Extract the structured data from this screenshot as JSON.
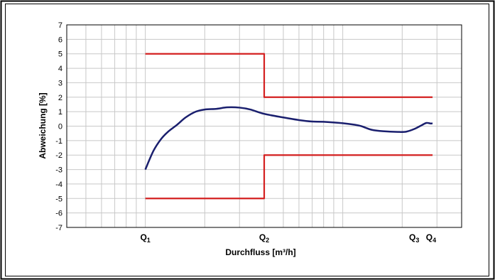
{
  "chart_data": {
    "type": "line",
    "xlabel": "Durchfluss [m³/h]",
    "ylabel": "Abweichung [%]",
    "ylim": [
      -7,
      7
    ],
    "y_ticks": [
      7,
      6,
      5,
      4,
      3,
      2,
      1,
      0,
      -1,
      -2,
      -3,
      -4,
      -5,
      -6,
      -7
    ],
    "x_scale": "log",
    "xlim": [
      0.4,
      40
    ],
    "grid": true,
    "legend": "none",
    "x_markers": [
      {
        "label": "Q",
        "sub": "1",
        "x": 1
      },
      {
        "label": "Q",
        "sub": "2",
        "x": 4
      },
      {
        "label": "Q",
        "sub": "3",
        "x": 23
      },
      {
        "label": "Q",
        "sub": "4",
        "x": 28
      }
    ],
    "colors": {
      "measured": "#1a1f6e",
      "limits": "#d42020",
      "grid": "#c8c8c8"
    },
    "series": [
      {
        "values": [
          [
            1.0,
            -3.0
          ],
          [
            1.1,
            -1.7
          ],
          [
            1.2,
            -0.9
          ],
          [
            1.3,
            -0.4
          ],
          [
            1.45,
            0.1
          ],
          [
            1.6,
            0.6
          ],
          [
            1.8,
            1.0
          ],
          [
            2.0,
            1.15
          ],
          [
            2.3,
            1.2
          ],
          [
            2.6,
            1.3
          ],
          [
            3.0,
            1.28
          ],
          [
            3.4,
            1.15
          ],
          [
            4.0,
            0.85
          ],
          [
            5.0,
            0.6
          ],
          [
            6.0,
            0.42
          ],
          [
            7.0,
            0.32
          ],
          [
            8.0,
            0.3
          ],
          [
            10.0,
            0.2
          ],
          [
            12.0,
            0.05
          ],
          [
            13.0,
            -0.1
          ],
          [
            14.0,
            -0.25
          ],
          [
            16.0,
            -0.35
          ],
          [
            19.0,
            -0.4
          ],
          [
            21.0,
            -0.38
          ],
          [
            23.0,
            -0.2
          ],
          [
            25.0,
            0.05
          ],
          [
            26.5,
            0.22
          ],
          [
            28.0,
            0.18
          ],
          [
            28.5,
            0.2
          ]
        ]
      },
      {
        "values": [
          [
            1.0,
            5
          ],
          [
            4.0,
            5
          ],
          [
            4.0,
            2
          ],
          [
            28.5,
            2
          ]
        ]
      },
      {
        "values": [
          [
            1.0,
            -5
          ],
          [
            4.0,
            -5
          ],
          [
            4.0,
            -2
          ],
          [
            28.5,
            -2
          ]
        ]
      }
    ]
  }
}
